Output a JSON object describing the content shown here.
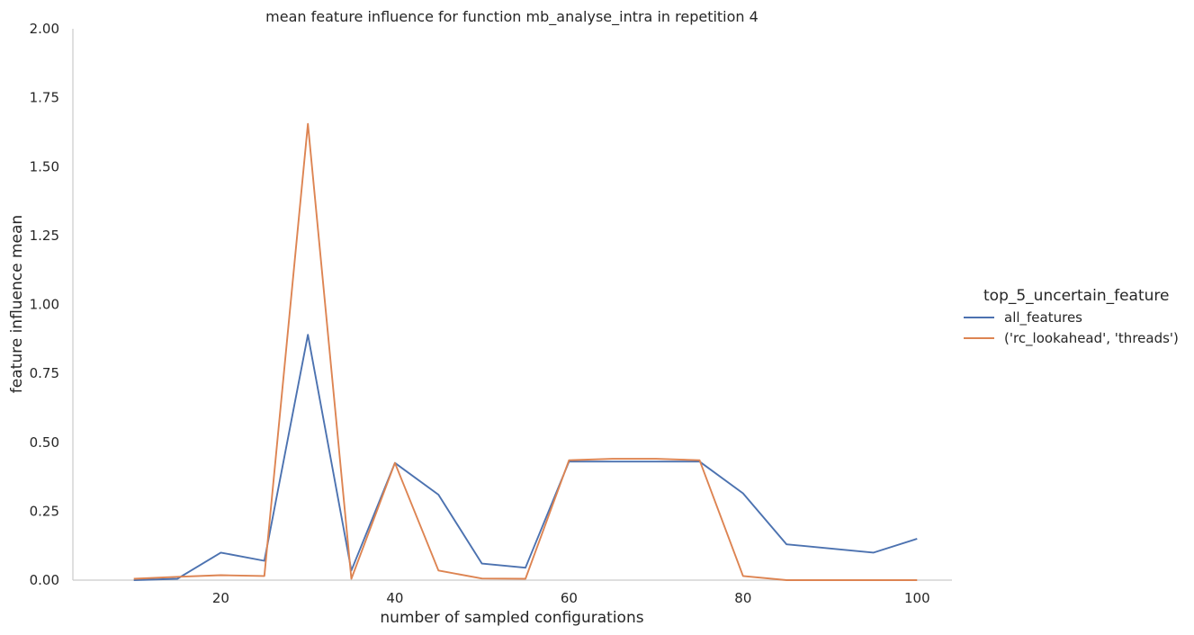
{
  "chart_data": {
    "type": "line",
    "title": "mean feature influence for function mb_analyse_intra in repetition 4",
    "xlabel": "number of sampled configurations",
    "ylabel": "feature influence mean",
    "xlim": [
      3,
      104
    ],
    "ylim": [
      0,
      2.0
    ],
    "x_ticks": [
      20,
      40,
      60,
      80,
      100
    ],
    "x_tick_labels": [
      "20",
      "40",
      "60",
      "80",
      "100"
    ],
    "y_ticks": [
      0,
      0.25,
      0.5,
      0.75,
      1.0,
      1.25,
      1.5,
      1.75,
      2.0
    ],
    "y_tick_labels": [
      "0.00",
      "0.25",
      "0.50",
      "0.75",
      "1.00",
      "1.25",
      "1.50",
      "1.75",
      "2.00"
    ],
    "grid": false,
    "legend": {
      "title": "top_5_uncertain_feature",
      "placement": "right"
    },
    "series": [
      {
        "name": "all_features",
        "color": "#4c72b0",
        "x": [
          10,
          15,
          20,
          25,
          30,
          35,
          40,
          45,
          50,
          55,
          60,
          65,
          70,
          75,
          80,
          85,
          90,
          95,
          100
        ],
        "values": [
          0.0,
          0.005,
          0.1,
          0.07,
          0.89,
          0.035,
          0.425,
          0.31,
          0.06,
          0.045,
          0.43,
          0.43,
          0.43,
          0.43,
          0.315,
          0.13,
          0.115,
          0.1,
          0.15
        ]
      },
      {
        "name": "('rc_lookahead', 'threads')",
        "color": "#dd8452",
        "x": [
          10,
          15,
          20,
          25,
          30,
          35,
          40,
          45,
          50,
          55,
          60,
          65,
          70,
          75,
          80,
          85,
          90,
          95,
          100
        ],
        "values": [
          0.005,
          0.012,
          0.018,
          0.015,
          1.655,
          0.005,
          0.425,
          0.035,
          0.006,
          0.005,
          0.435,
          0.44,
          0.44,
          0.435,
          0.015,
          0.0,
          0.0,
          0.0,
          0.0
        ]
      }
    ]
  }
}
